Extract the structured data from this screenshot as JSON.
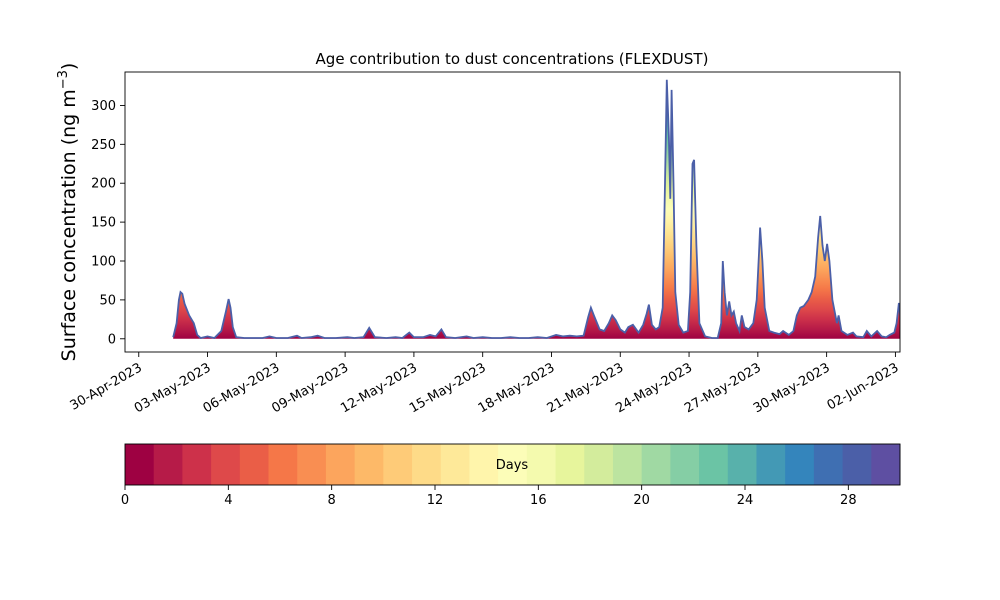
{
  "chart_data": {
    "type": "area",
    "title": "Age contribution to dust concentrations (FLEXDUST)",
    "ylabel_main": "Surface concentration (ng m",
    "ylabel_sup": "−3",
    "ylabel_close": ")",
    "xlabel": "",
    "x_tick_labels": [
      "30-Apr-2023",
      "03-May-2023",
      "06-May-2023",
      "09-May-2023",
      "12-May-2023",
      "15-May-2023",
      "18-May-2023",
      "21-May-2023",
      "24-May-2023",
      "27-May-2023",
      "30-May-2023",
      "02-Jun-2023"
    ],
    "x_range_days": [
      -0.6,
      33.2
    ],
    "x_tick_days": [
      0,
      3,
      6,
      9,
      12,
      15,
      18,
      21,
      24,
      27,
      30,
      33
    ],
    "y_ticks": [
      0,
      50,
      100,
      150,
      200,
      250,
      300
    ],
    "ylim": [
      -17,
      343
    ],
    "grid": false,
    "legend": "none",
    "total_series": [
      [
        1.5,
        2
      ],
      [
        1.65,
        20
      ],
      [
        1.75,
        50
      ],
      [
        1.82,
        60
      ],
      [
        1.9,
        58
      ],
      [
        2.0,
        45
      ],
      [
        2.2,
        30
      ],
      [
        2.4,
        20
      ],
      [
        2.55,
        5
      ],
      [
        2.7,
        1
      ],
      [
        3.0,
        3
      ],
      [
        3.3,
        1
      ],
      [
        3.6,
        10
      ],
      [
        3.8,
        35
      ],
      [
        3.92,
        51
      ],
      [
        4.0,
        40
      ],
      [
        4.1,
        15
      ],
      [
        4.25,
        2
      ],
      [
        4.6,
        1
      ],
      [
        5.0,
        1
      ],
      [
        5.4,
        1
      ],
      [
        5.7,
        3
      ],
      [
        6.0,
        1
      ],
      [
        6.5,
        1
      ],
      [
        6.9,
        4
      ],
      [
        7.1,
        1
      ],
      [
        7.5,
        2
      ],
      [
        7.8,
        4
      ],
      [
        8.1,
        1
      ],
      [
        8.6,
        1
      ],
      [
        9.1,
        2
      ],
      [
        9.4,
        1
      ],
      [
        9.8,
        2
      ],
      [
        10.05,
        14
      ],
      [
        10.3,
        2
      ],
      [
        10.8,
        1
      ],
      [
        11.2,
        2
      ],
      [
        11.5,
        1
      ],
      [
        11.8,
        8
      ],
      [
        12.0,
        2
      ],
      [
        12.4,
        2
      ],
      [
        12.7,
        5
      ],
      [
        12.95,
        3
      ],
      [
        13.2,
        12
      ],
      [
        13.4,
        2
      ],
      [
        13.8,
        1
      ],
      [
        14.3,
        3
      ],
      [
        14.6,
        1
      ],
      [
        15.0,
        2
      ],
      [
        15.4,
        1
      ],
      [
        15.8,
        1
      ],
      [
        16.2,
        2
      ],
      [
        16.6,
        1
      ],
      [
        17.0,
        1
      ],
      [
        17.4,
        2
      ],
      [
        17.8,
        1
      ],
      [
        18.2,
        5
      ],
      [
        18.5,
        3
      ],
      [
        18.8,
        4
      ],
      [
        19.1,
        3
      ],
      [
        19.4,
        4
      ],
      [
        19.6,
        28
      ],
      [
        19.72,
        40
      ],
      [
        19.85,
        30
      ],
      [
        20.1,
        12
      ],
      [
        20.3,
        10
      ],
      [
        20.5,
        20
      ],
      [
        20.65,
        30
      ],
      [
        20.8,
        24
      ],
      [
        21.0,
        12
      ],
      [
        21.2,
        8
      ],
      [
        21.35,
        15
      ],
      [
        21.55,
        18
      ],
      [
        21.8,
        8
      ],
      [
        22.0,
        18
      ],
      [
        22.15,
        32
      ],
      [
        22.25,
        44
      ],
      [
        22.38,
        18
      ],
      [
        22.55,
        12
      ],
      [
        22.7,
        15
      ],
      [
        22.85,
        40
      ],
      [
        22.95,
        200
      ],
      [
        23.03,
        333
      ],
      [
        23.12,
        260
      ],
      [
        23.18,
        180
      ],
      [
        23.24,
        320
      ],
      [
        23.32,
        200
      ],
      [
        23.4,
        60
      ],
      [
        23.55,
        18
      ],
      [
        23.75,
        8
      ],
      [
        23.95,
        10
      ],
      [
        24.05,
        60
      ],
      [
        24.15,
        225
      ],
      [
        24.22,
        230
      ],
      [
        24.32,
        120
      ],
      [
        24.45,
        20
      ],
      [
        24.7,
        3
      ],
      [
        25.0,
        1
      ],
      [
        25.25,
        1
      ],
      [
        25.4,
        20
      ],
      [
        25.47,
        100
      ],
      [
        25.55,
        60
      ],
      [
        25.65,
        30
      ],
      [
        25.75,
        48
      ],
      [
        25.85,
        30
      ],
      [
        25.95,
        35
      ],
      [
        26.05,
        20
      ],
      [
        26.2,
        10
      ],
      [
        26.3,
        30
      ],
      [
        26.42,
        15
      ],
      [
        26.6,
        12
      ],
      [
        26.8,
        20
      ],
      [
        26.95,
        50
      ],
      [
        27.05,
        110
      ],
      [
        27.1,
        143
      ],
      [
        27.2,
        100
      ],
      [
        27.3,
        40
      ],
      [
        27.5,
        10
      ],
      [
        27.7,
        8
      ],
      [
        27.95,
        6
      ],
      [
        28.1,
        10
      ],
      [
        28.35,
        5
      ],
      [
        28.55,
        10
      ],
      [
        28.7,
        30
      ],
      [
        28.85,
        40
      ],
      [
        29.0,
        42
      ],
      [
        29.2,
        50
      ],
      [
        29.35,
        60
      ],
      [
        29.5,
        80
      ],
      [
        29.63,
        130
      ],
      [
        29.72,
        158
      ],
      [
        29.82,
        120
      ],
      [
        29.92,
        100
      ],
      [
        30.02,
        122
      ],
      [
        30.12,
        100
      ],
      [
        30.25,
        50
      ],
      [
        30.45,
        20
      ],
      [
        30.52,
        30
      ],
      [
        30.65,
        10
      ],
      [
        30.9,
        5
      ],
      [
        31.15,
        8
      ],
      [
        31.3,
        3
      ],
      [
        31.6,
        2
      ],
      [
        31.75,
        10
      ],
      [
        31.95,
        3
      ],
      [
        32.2,
        10
      ],
      [
        32.4,
        3
      ],
      [
        32.6,
        2
      ],
      [
        32.75,
        5
      ],
      [
        32.95,
        8
      ],
      [
        33.05,
        20
      ],
      [
        33.15,
        46
      ],
      [
        33.25,
        20
      ],
      [
        33.4,
        12
      ],
      [
        33.55,
        30
      ],
      [
        33.62,
        2
      ]
    ],
    "colorbar": {
      "label": "Days",
      "vmin": 0,
      "vmax": 30,
      "tick_values": [
        0,
        4,
        8,
        12,
        16,
        20,
        24,
        28
      ],
      "tick_labels": [
        "0",
        "4",
        "8",
        "12",
        "16",
        "20",
        "24",
        "28"
      ],
      "colors": [
        "#9e0142",
        "#b61b48",
        "#cd314a",
        "#de494a",
        "#ea5e47",
        "#f57748",
        "#f98e52",
        "#fca55d",
        "#fdb968",
        "#fecb78",
        "#fedb88",
        "#fee999",
        "#fff5ab",
        "#fcfdb8",
        "#f4faae",
        "#e7f59c",
        "#d3ec9c",
        "#bce4a0",
        "#a0d9a3",
        "#85cea5",
        "#6bc4a5",
        "#58b1ab",
        "#4399b5",
        "#3485bc",
        "#3f6fb2",
        "#4b5fa8",
        "#5e4fa2"
      ]
    }
  }
}
